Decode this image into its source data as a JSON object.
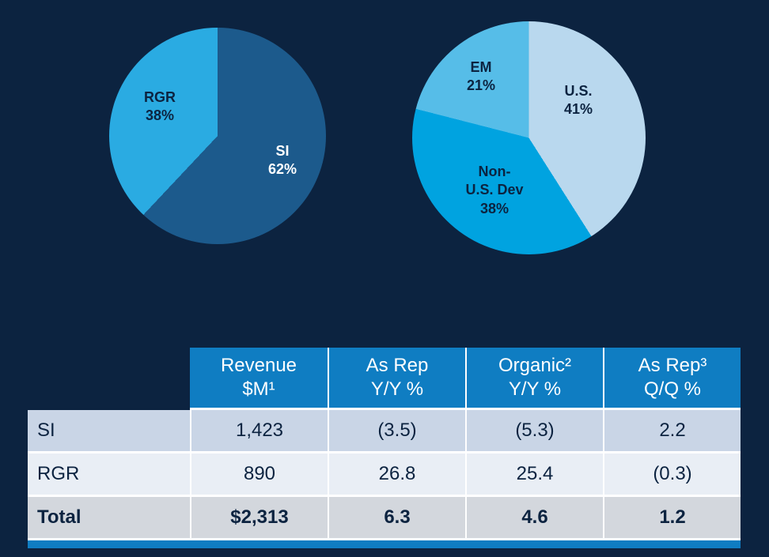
{
  "colors": {
    "background": "#0c2340",
    "table_header": "#0f7dc2",
    "row_si": "#c9d5e6",
    "row_rgr": "#e9eef5",
    "row_total": "#d3d7dd",
    "accent_bar": "#0f7dc2",
    "body_text": "#0c2340"
  },
  "chart_data": [
    {
      "name": "revenue-mix-by-segment",
      "type": "pie",
      "start_angle_deg": 0,
      "direction": "clockwise",
      "legend_position": "inside",
      "slices": [
        {
          "label": "SI",
          "value": 62,
          "unit": "%",
          "display": "SI\n62%",
          "color": "#1c5a8c",
          "label_color": "#ffffff"
        },
        {
          "label": "RGR",
          "value": 38,
          "unit": "%",
          "display": "RGR\n38%",
          "color": "#2aabe2",
          "label_color": "#0c2340"
        }
      ]
    },
    {
      "name": "revenue-mix-by-geography",
      "type": "pie",
      "start_angle_deg": 0,
      "direction": "clockwise",
      "legend_position": "inside",
      "slices": [
        {
          "label": "U.S.",
          "value": 41,
          "unit": "%",
          "display": "U.S.\n41%",
          "color": "#b9d8ee",
          "label_color": "#0c2340"
        },
        {
          "label": "Non-U.S. Dev",
          "value": 38,
          "unit": "%",
          "display": "Non-\nU.S. Dev\n38%",
          "color": "#00a3e0",
          "label_color": "#0c2340"
        },
        {
          "label": "EM",
          "value": 21,
          "unit": "%",
          "display": "EM\n21%",
          "color": "#56bde8",
          "label_color": "#0c2340"
        }
      ]
    },
    {
      "name": "financial-summary-table",
      "type": "table",
      "columns": [
        {
          "line1": "Revenue",
          "line2": "$M¹"
        },
        {
          "line1": "As Rep",
          "line2": "Y/Y %"
        },
        {
          "line1": "Organic²",
          "line2": "Y/Y %"
        },
        {
          "line1": "As Rep³",
          "line2": "Q/Q %"
        }
      ],
      "rows": [
        {
          "label": "SI",
          "cells": [
            "1,423",
            "(3.5)",
            "(5.3)",
            "2.2"
          ],
          "emphasis": false
        },
        {
          "label": "RGR",
          "cells": [
            "890",
            "26.8",
            "25.4",
            "(0.3)"
          ],
          "emphasis": false
        },
        {
          "label": "Total",
          "cells": [
            "$2,313",
            "6.3",
            "4.6",
            "1.2"
          ],
          "emphasis": true
        }
      ]
    }
  ]
}
